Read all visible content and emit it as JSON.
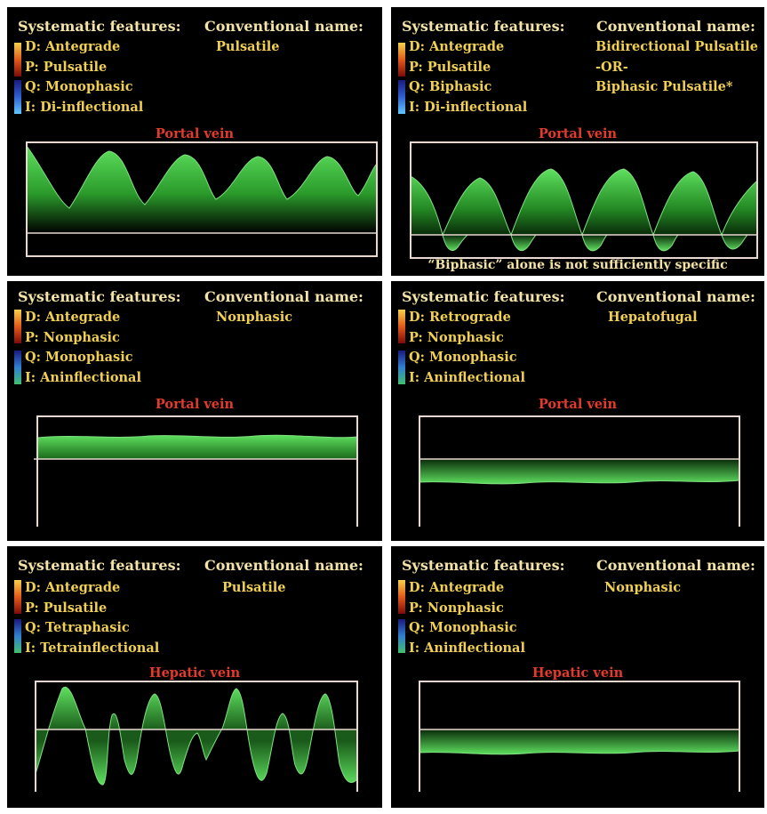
{
  "colors": {
    "background": "#000000",
    "header_text": "#f3e3a6",
    "feature_text": "#f0cf52",
    "vessel_title": "#e23a2c",
    "waveform_green": "#3fbf3f",
    "frame_line": "#e8d8d0"
  },
  "panels": [
    {
      "header_features": "Systematic features:",
      "header_conv": "Conventional name:",
      "features": [
        "D: Antegrade",
        "P:  Pulsatile",
        "Q: Monophasic",
        "I:  Di-inflectional"
      ],
      "conv_name": [
        "Pulsatile"
      ],
      "vessel": "Portal vein",
      "note": ""
    },
    {
      "header_features": "Systematic features:",
      "header_conv": "Conventional name:",
      "features": [
        "D: Antegrade",
        "P:  Pulsatile",
        "Q: Biphasic",
        "I:  Di-inflectional"
      ],
      "conv_name": [
        "Bidirectional Pulsatile",
        "-OR-",
        "Biphasic Pulsatile*"
      ],
      "vessel": "Portal vein",
      "note": "“Biphasic” alone is not sufficiently specific"
    },
    {
      "header_features": "Systematic features:",
      "header_conv": "Conventional name:",
      "features": [
        "D: Antegrade",
        "P:  Nonphasic",
        "Q: Monophasic",
        "I:  Aninflectional"
      ],
      "conv_name": [
        "Nonphasic"
      ],
      "vessel": "Portal vein",
      "note": ""
    },
    {
      "header_features": "Systematic features:",
      "header_conv": "Conventional name:",
      "features": [
        "D: Retrograde",
        "P:  Nonphasic",
        "Q: Monophasic",
        "I:  Aninflectional"
      ],
      "conv_name": [
        "Hepatofugal"
      ],
      "vessel": "Portal vein",
      "note": ""
    },
    {
      "header_features": "Systematic features:",
      "header_conv": "Conventional name:",
      "features": [
        "D: Antegrade",
        "P:  Pulsatile",
        "Q: Tetraphasic",
        "I:  Tetrainflectional"
      ],
      "conv_name": [
        "Pulsatile"
      ],
      "vessel": "Hepatic vein",
      "note": ""
    },
    {
      "header_features": "Systematic features:",
      "header_conv": "Conventional name:",
      "features": [
        "D: Antegrade",
        "P:  Nonphasic",
        "Q: Monophasic",
        "I:  Aninflectional"
      ],
      "conv_name": [
        "Nonphasic"
      ],
      "vessel": "Hepatic vein",
      "note": ""
    }
  ]
}
